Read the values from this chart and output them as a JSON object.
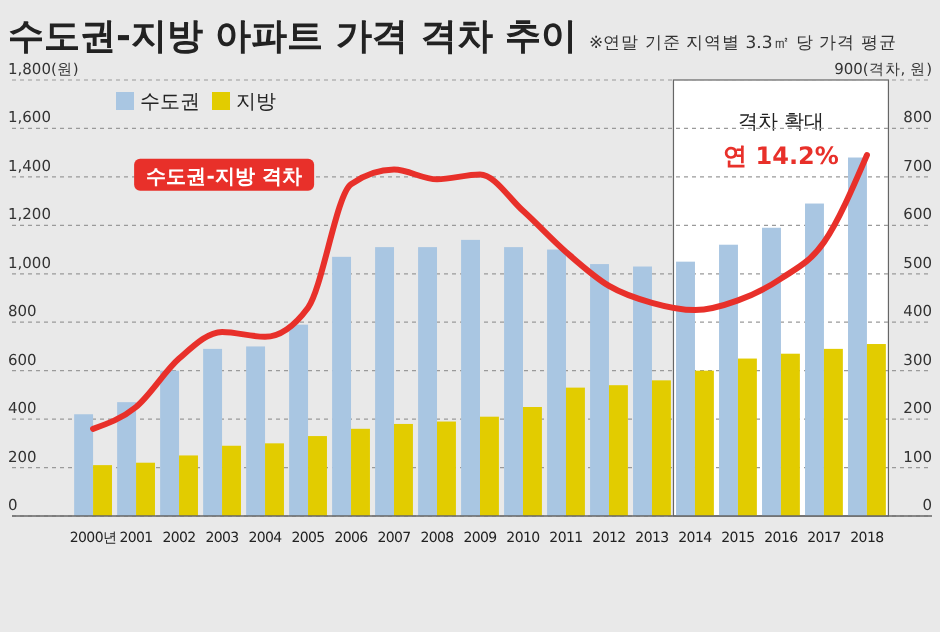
{
  "chart_data": {
    "type": "bar",
    "title": "수도권-지방 아파트 가격 격차 추이",
    "subtitle": "※연말 기준 지역별 3.3㎡ 당 가격 평균",
    "categories": [
      "2000년",
      "2001",
      "2002",
      "2003",
      "2004",
      "2005",
      "2006",
      "2007",
      "2008",
      "2009",
      "2010",
      "2011",
      "2012",
      "2013",
      "2014",
      "2015",
      "2016",
      "2017",
      "2018"
    ],
    "series": [
      {
        "name": "수도권",
        "color": "#a9c6e2",
        "values": [
          420,
          470,
          600,
          690,
          700,
          790,
          1070,
          1110,
          1110,
          1140,
          1110,
          1100,
          1040,
          1030,
          1050,
          1120,
          1190,
          1290,
          1480
        ]
      },
      {
        "name": "지방",
        "color": "#e2cc00",
        "values": [
          210,
          220,
          250,
          290,
          300,
          330,
          360,
          380,
          390,
          410,
          450,
          530,
          540,
          560,
          600,
          650,
          670,
          690,
          710
        ]
      },
      {
        "name": "수도권-지방 격차",
        "type": "line",
        "axis": "y2",
        "color": "#e8302a",
        "values": [
          180,
          225,
          325,
          380,
          370,
          430,
          685,
          715,
          695,
          705,
          630,
          545,
          475,
          440,
          425,
          445,
          490,
          565,
          745
        ]
      }
    ],
    "ylim": [
      0,
      1800
    ],
    "yticks": [
      0,
      200,
      400,
      600,
      800,
      {
        "value": 1000,
        "label": "1,000"
      },
      {
        "value": 1200,
        "label": "1,200"
      },
      {
        "value": 1400,
        "label": "1,400"
      },
      {
        "value": 1600,
        "label": "1,600"
      },
      {
        "value": 1800,
        "label": "1,800(원)"
      }
    ],
    "y2lim": [
      0,
      900
    ],
    "y2ticks": [
      0,
      100,
      200,
      300,
      400,
      500,
      600,
      700,
      800,
      {
        "value": 900,
        "label": "900(격차, 원)"
      }
    ],
    "grid": "y",
    "legend": "top left",
    "bands": [
      {
        "axis": "x",
        "from": "2014",
        "to": "2018",
        "label": "격차 확대",
        "color": "#ffffff"
      }
    ],
    "annotations": [
      "연 14.2%"
    ]
  }
}
